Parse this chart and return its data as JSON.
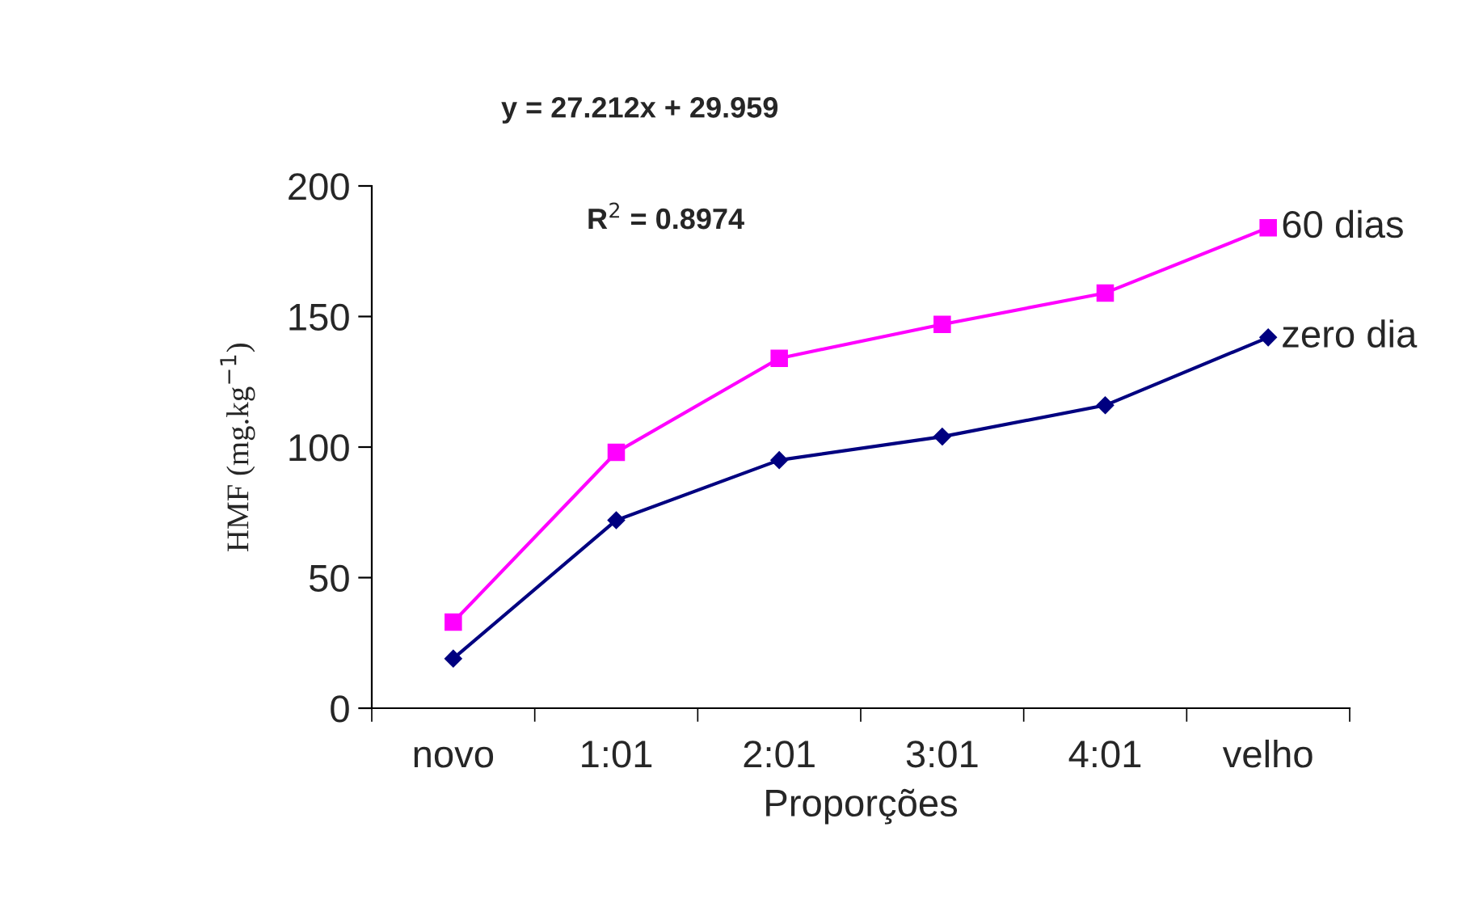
{
  "chart_data": {
    "type": "line",
    "xlabel": "Proporções",
    "ylabel": "HMF (mg.kg$^{−1}$)",
    "categories": [
      "novo",
      "1:01",
      "2:01",
      "3:01",
      "4:01",
      "velho"
    ],
    "series": [
      {
        "name": "60 dias",
        "color": "#ff00ff",
        "marker": "square",
        "values": [
          33,
          98,
          134,
          147,
          159,
          184
        ]
      },
      {
        "name": "zero dia",
        "color": "#000080",
        "marker": "diamond",
        "values": [
          19,
          72,
          95,
          104,
          116,
          142
        ]
      }
    ],
    "ylim": [
      0,
      200
    ],
    "yticks": [
      0,
      50,
      100,
      150,
      200
    ],
    "annotations": [
      "y = 27.212x + 29.959",
      "R$^{2}$ = 0.8974"
    ],
    "grid": false,
    "legend": false,
    "line_style": "solid"
  }
}
